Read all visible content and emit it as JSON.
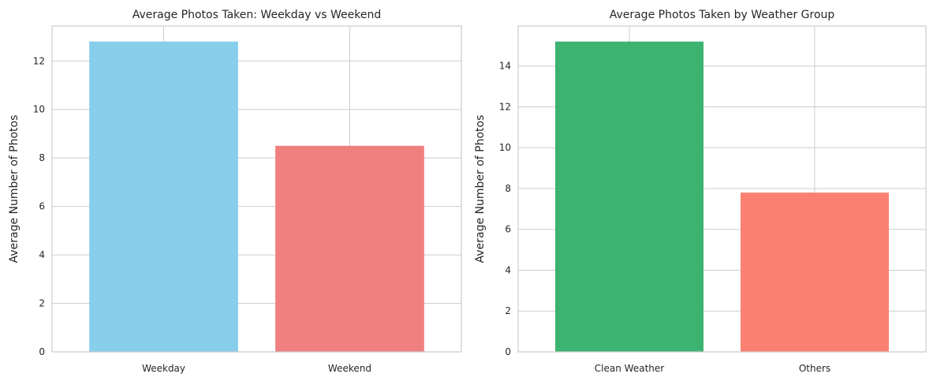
{
  "chart_data": [
    {
      "type": "bar",
      "title": "Average Photos Taken: Weekday vs Weekend",
      "xlabel": "",
      "ylabel": "Average Number of Photos",
      "categories": [
        "Weekday",
        "Weekend"
      ],
      "values": [
        12.8,
        8.5
      ],
      "colors": [
        "#87ceeb",
        "#f08080"
      ],
      "ylim": [
        0,
        13.44
      ],
      "yticks": [
        0,
        2,
        4,
        6,
        8,
        10,
        12
      ],
      "grid": true,
      "legend": "none"
    },
    {
      "type": "bar",
      "title": "Average Photos Taken by Weather Group",
      "xlabel": "",
      "ylabel": "Average Number of Photos",
      "categories": [
        "Clean Weather",
        "Others"
      ],
      "values": [
        15.2,
        7.8
      ],
      "colors": [
        "#3cb371",
        "#fa8072"
      ],
      "ylim": [
        0,
        15.96
      ],
      "yticks": [
        0,
        2,
        4,
        6,
        8,
        10,
        12,
        14
      ],
      "grid": true,
      "legend": "none"
    }
  ]
}
